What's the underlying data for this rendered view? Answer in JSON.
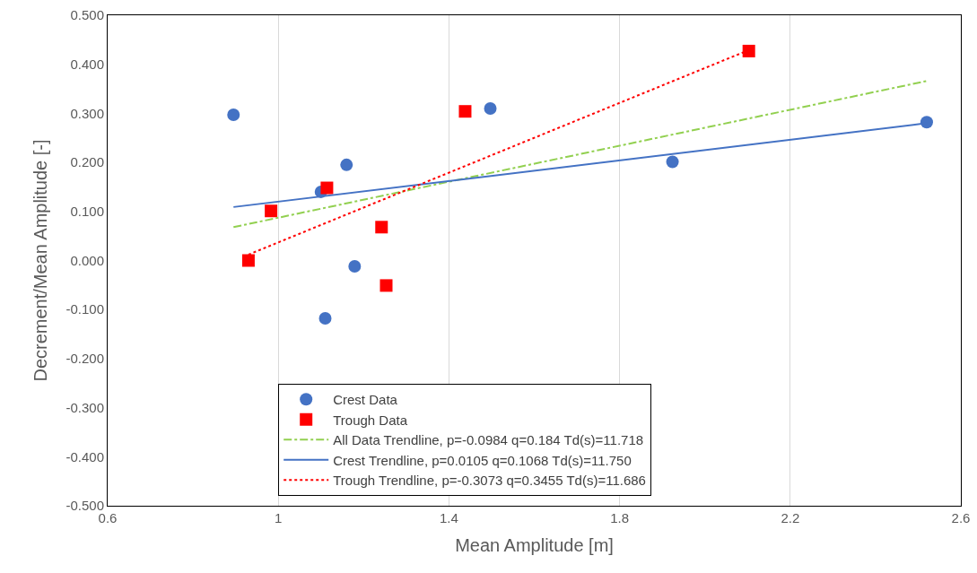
{
  "chart_data": {
    "type": "scatter",
    "xlabel": "Mean Amplitude [m]",
    "ylabel": "Decrement/Mean Amplitude [-]",
    "series": [
      {
        "name": "Crest Data",
        "marker": "circle",
        "color": "#4472c4",
        "x": [
          0.895,
          1.1,
          1.16,
          1.179,
          1.11,
          1.497,
          1.924,
          2.52
        ],
        "values": [
          0.297,
          0.14,
          0.195,
          -0.012,
          -0.118,
          0.31,
          0.201,
          0.282
        ]
      },
      {
        "name": "Trough Data",
        "marker": "square",
        "color": "#ff0000",
        "x": [
          0.93,
          0.983,
          1.114,
          1.242,
          1.253,
          1.438,
          2.103
        ],
        "values": [
          0.0,
          0.101,
          0.148,
          0.068,
          -0.051,
          0.304,
          0.427
        ]
      },
      {
        "name": "All Data Trendline, p=-0.0984 q=0.184 Td(s)=11.718",
        "type": "line",
        "line_style": "dashed",
        "color": "#92d050",
        "x": [
          0.895,
          2.52
        ],
        "values": [
          0.068,
          0.366
        ]
      },
      {
        "name": "Crest Trendline, p=0.0105 q=0.1068 Td(s)=11.750",
        "type": "line",
        "line_style": "solid",
        "color": "#4472c4",
        "x": [
          0.895,
          2.52
        ],
        "values": [
          0.109,
          0.28
        ]
      },
      {
        "name": "Trough Trendline, p=-0.3073 q=0.3455 Td(s)=11.686",
        "type": "line",
        "line_style": "dotted",
        "color": "#ff0000",
        "x": [
          0.93,
          2.103
        ],
        "values": [
          0.012,
          0.429
        ]
      }
    ],
    "xlim": [
      0.6,
      2.6
    ],
    "xticks": [
      0.6,
      1,
      1.4,
      1.8,
      2.2,
      2.6
    ],
    "ylim": [
      -0.5,
      0.5
    ],
    "yticks": [
      {
        "value": -0.5,
        "label": "-0.500"
      },
      {
        "value": -0.4,
        "label": "-0.400"
      },
      {
        "value": -0.3,
        "label": "-0.300"
      },
      {
        "value": -0.2,
        "label": "-0.200"
      },
      {
        "value": -0.1,
        "label": "-0.100"
      },
      {
        "value": 0,
        "label": "0.000"
      },
      {
        "value": 0.1,
        "label": "0.100"
      },
      {
        "value": 0.2,
        "label": "0.200"
      },
      {
        "value": 0.3,
        "label": "0.300"
      },
      {
        "value": 0.4,
        "label": "0.400"
      },
      {
        "value": 0.5,
        "label": "0.500"
      }
    ],
    "grid": "x",
    "legend": "bottom"
  }
}
